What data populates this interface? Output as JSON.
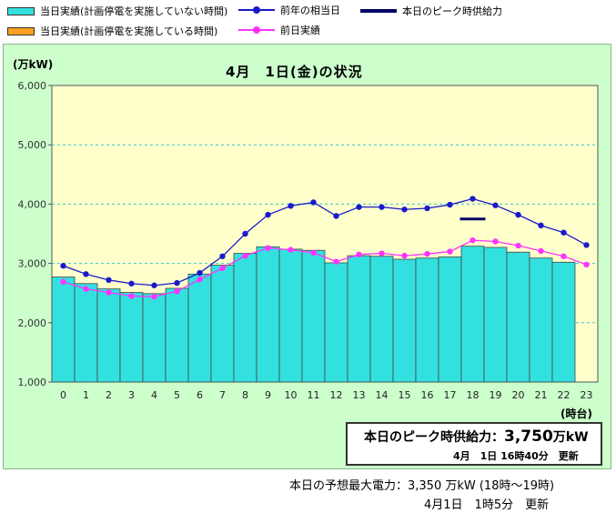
{
  "legend": {
    "today_no_outage": "当日実績(計画停電を実施していない時間)",
    "today_outage": "当日実績(計画停電を実施している時間)",
    "prev_year": "前年の相当日",
    "peak_supply": "本日のピーク時供給力",
    "prev_day": "前日実績"
  },
  "colors": {
    "bar_no_outage": "#33e0e0",
    "bar_outage": "#ffa020",
    "prev_year_line": "#1a1acc",
    "prev_day_line": "#ff33ff",
    "peak_line": "#000066",
    "plot_bg": "#ffffcc",
    "panel_bg": "#ccffcc"
  },
  "header": {
    "unit": "(万kW)",
    "title": "4月　1日(金)の状況"
  },
  "x_unit": "(時台)",
  "chart_data": {
    "type": "bar",
    "x": [
      0,
      1,
      2,
      3,
      4,
      5,
      6,
      7,
      8,
      9,
      10,
      11,
      12,
      13,
      14,
      15,
      16,
      17,
      18,
      19,
      20,
      21,
      22,
      23
    ],
    "xlabels": [
      "0",
      "1",
      "2",
      "3",
      "4",
      "5",
      "6",
      "7",
      "8",
      "9",
      "10",
      "11",
      "12",
      "13",
      "14",
      "15",
      "16",
      "17",
      "18",
      "19",
      "20",
      "21",
      "22",
      "23"
    ],
    "ylim": [
      1000,
      6000
    ],
    "yticks": [
      1000,
      2000,
      3000,
      4000,
      5000,
      6000
    ],
    "ytick_labels": [
      "1,000",
      "2,000",
      "3,000",
      "4,000",
      "5,000",
      "6,000"
    ],
    "grid": true,
    "series": [
      {
        "name": "当日実績(計画停電を実施していない時間)",
        "type": "bar",
        "values": [
          2770,
          2660,
          2570,
          2510,
          2490,
          2580,
          2820,
          2970,
          3170,
          3280,
          3240,
          3220,
          3010,
          3130,
          3120,
          3070,
          3090,
          3110,
          3290,
          3270,
          3190,
          3090,
          3020,
          null
        ]
      },
      {
        "name": "前年の相当日",
        "type": "line",
        "values": [
          2960,
          2820,
          2720,
          2660,
          2630,
          2670,
          2840,
          3120,
          3500,
          3820,
          3970,
          4030,
          3800,
          3950,
          3950,
          3910,
          3930,
          3990,
          4090,
          3980,
          3820,
          3640,
          3520,
          3310
        ]
      },
      {
        "name": "前日実績",
        "type": "line",
        "values": [
          2690,
          2570,
          2510,
          2450,
          2440,
          2530,
          2730,
          2920,
          3130,
          3260,
          3230,
          3180,
          3030,
          3150,
          3170,
          3130,
          3160,
          3200,
          3390,
          3370,
          3300,
          3210,
          3120,
          2980
        ]
      },
      {
        "name": "本日のピーク時供給力",
        "type": "segment",
        "x": 18,
        "value": 3750
      }
    ]
  },
  "peak": {
    "label": "本日のピーク時供給力：",
    "value": "3,750",
    "unit": "万kW",
    "updated": "4月　1日 16時40分　更新"
  },
  "forecast": "本日の予想最大電力：3,350 万kW (18時～19時)",
  "updated": "4月1日　1時5分　更新"
}
